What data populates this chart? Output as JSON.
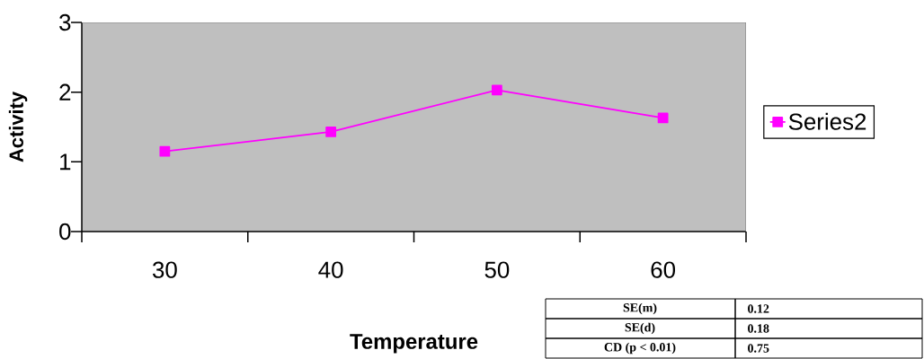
{
  "chart_data": {
    "type": "line",
    "xlabel": "Temperature",
    "ylabel": "Activity",
    "categories": [
      "30",
      "40",
      "50",
      "60"
    ],
    "series": [
      {
        "name": "Series2",
        "color": "#ff00ff",
        "values": [
          1.15,
          1.43,
          2.03,
          1.63
        ]
      }
    ],
    "ylim": [
      0,
      3
    ],
    "yticks": [
      0,
      1,
      2,
      3
    ],
    "grid": false,
    "legend": "right",
    "marker": "square",
    "line_style": "solid",
    "annotations": [
      "SE(m)",
      "0.12",
      "SE(d)",
      "0.18",
      "CD (p < 0.01)",
      "0.75"
    ]
  }
}
